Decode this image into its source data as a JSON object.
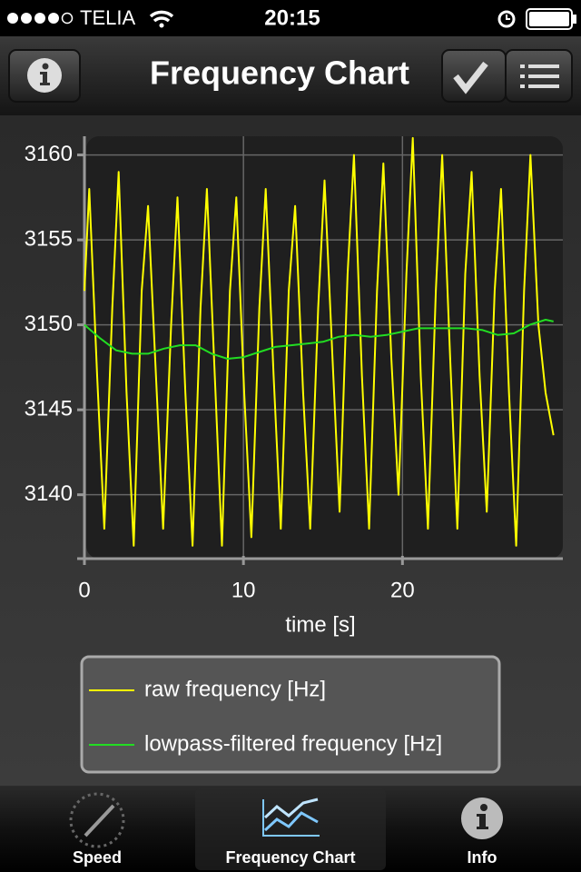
{
  "status_bar": {
    "carrier": "TELIA",
    "time": "20:15"
  },
  "nav_bar": {
    "title": "Frequency Chart"
  },
  "chart_data": {
    "type": "line",
    "xlabel": "time [s]",
    "xlim": [
      0,
      29.8
    ],
    "ylim": [
      3136.4,
      3161.1
    ],
    "xticks": [
      0,
      10,
      20
    ],
    "yticks": [
      3140,
      3145,
      3150,
      3155,
      3160
    ],
    "grid": true,
    "series": [
      {
        "name": "raw frequency [Hz]",
        "color": "#ffff00",
        "x": [
          0,
          0.3,
          0.8,
          1.25,
          1.75,
          2.15,
          2.65,
          3.1,
          3.6,
          4.0,
          4.5,
          4.95,
          5.45,
          5.85,
          6.35,
          6.8,
          7.3,
          7.7,
          8.2,
          8.65,
          9.15,
          9.55,
          10.05,
          10.5,
          11.0,
          11.4,
          11.9,
          12.35,
          12.85,
          13.25,
          13.75,
          14.2,
          14.7,
          15.1,
          15.6,
          16.05,
          16.55,
          16.95,
          17.45,
          17.9,
          18.4,
          18.8,
          19.3,
          19.75,
          20.25,
          20.65,
          21.15,
          21.6,
          22.1,
          22.5,
          23.0,
          23.45,
          23.95,
          24.35,
          24.85,
          25.3,
          25.8,
          26.2,
          26.7,
          27.15,
          27.65,
          28.05,
          28.55,
          29.0,
          29.5
        ],
        "values": [
          3152,
          3158,
          3147,
          3138,
          3151,
          3159,
          3146,
          3137,
          3152,
          3157,
          3147,
          3138,
          3150,
          3157.5,
          3146,
          3137,
          3151,
          3158,
          3147,
          3137,
          3152,
          3157.5,
          3146,
          3137.5,
          3151,
          3158,
          3147,
          3138,
          3152,
          3157,
          3146,
          3138,
          3151,
          3158.5,
          3148,
          3139,
          3153,
          3160,
          3147,
          3138,
          3152,
          3159.5,
          3148,
          3140,
          3153,
          3161,
          3147,
          3138,
          3152,
          3160,
          3148,
          3138,
          3153,
          3159,
          3147,
          3139,
          3152,
          3158,
          3146,
          3137,
          3152,
          3160,
          3150,
          3146,
          3143.5
        ]
      },
      {
        "name": "lowpass-filtered frequency [Hz]",
        "color": "#22dd22",
        "x": [
          0,
          1,
          2,
          3,
          4,
          5,
          6,
          7,
          8,
          9,
          10,
          11,
          12,
          13,
          14,
          15,
          16,
          17,
          18,
          19,
          20,
          21,
          22,
          23,
          24,
          25,
          26,
          27,
          28,
          29,
          29.5
        ],
        "values": [
          3150,
          3149.2,
          3148.5,
          3148.3,
          3148.3,
          3148.6,
          3148.8,
          3148.8,
          3148.3,
          3148,
          3148.1,
          3148.4,
          3148.7,
          3148.8,
          3148.9,
          3149,
          3149.3,
          3149.4,
          3149.3,
          3149.4,
          3149.6,
          3149.8,
          3149.8,
          3149.8,
          3149.8,
          3149.7,
          3149.4,
          3149.5,
          3150,
          3150.3,
          3150.2
        ]
      }
    ]
  },
  "tab_bar": {
    "items": [
      "Speed",
      "Frequency Chart",
      "Info"
    ]
  }
}
